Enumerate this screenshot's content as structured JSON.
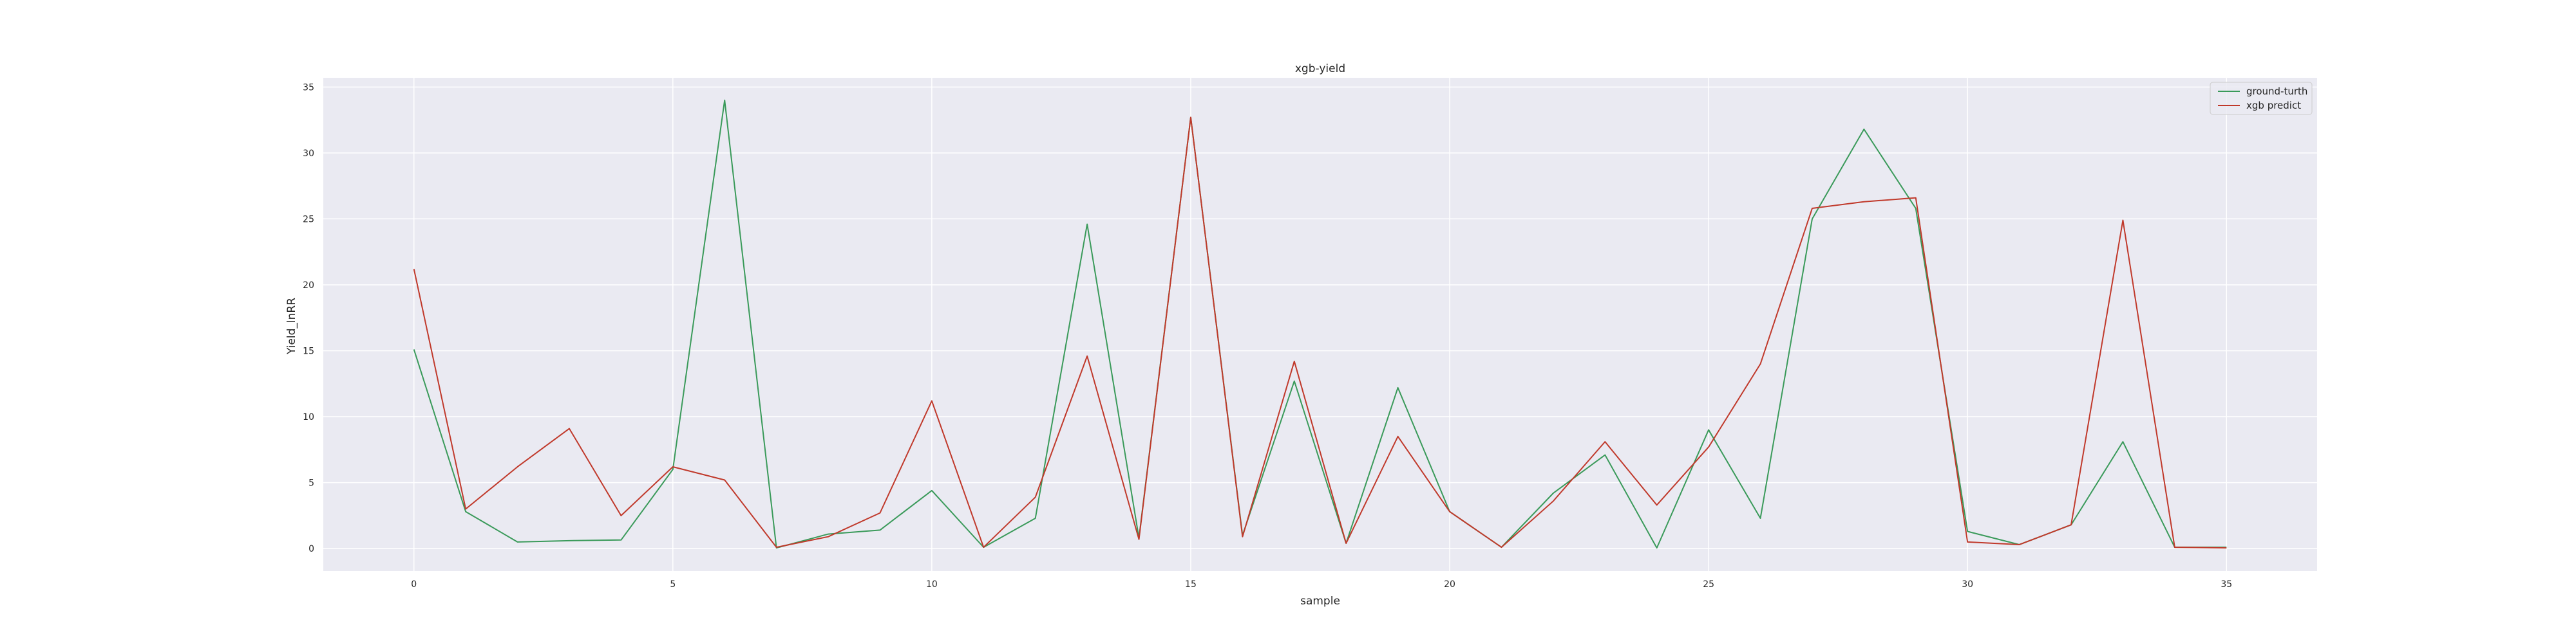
{
  "chart_data": {
    "type": "line",
    "title": "xgb-yield",
    "xlabel": "sample",
    "ylabel": "Yield_lnRR",
    "xlim": [
      -1.75,
      36.75
    ],
    "ylim": [
      -1.7,
      35.7
    ],
    "xticks": [
      0,
      5,
      10,
      15,
      20,
      25,
      30,
      35
    ],
    "yticks": [
      0,
      5,
      10,
      15,
      20,
      25,
      30,
      35
    ],
    "grid": true,
    "legend_position": "top-right",
    "background_color": "#eaeaf2",
    "grid_color": "#ffffff",
    "x": [
      0,
      1,
      2,
      3,
      4,
      5,
      6,
      7,
      8,
      9,
      10,
      11,
      12,
      13,
      14,
      15,
      16,
      17,
      18,
      19,
      20,
      21,
      22,
      23,
      24,
      25,
      26,
      27,
      28,
      29,
      30,
      31,
      32,
      33,
      34,
      35
    ],
    "series": [
      {
        "name": "ground-turth",
        "color": "#3a9a5a",
        "values": [
          15.1,
          2.8,
          0.5,
          0.6,
          0.65,
          6.0,
          34.0,
          0.05,
          1.1,
          1.4,
          4.4,
          0.1,
          2.3,
          24.6,
          0.8,
          32.7,
          1.0,
          12.7,
          0.4,
          12.2,
          2.8,
          0.1,
          4.2,
          7.1,
          0.05,
          9.0,
          2.3,
          25.0,
          31.8,
          25.8,
          1.3,
          0.3,
          1.8,
          8.1,
          0.1,
          0.1
        ]
      },
      {
        "name": "xgb predict",
        "color": "#c0392b",
        "values": [
          21.2,
          3.0,
          6.2,
          9.1,
          2.5,
          6.2,
          5.2,
          0.1,
          0.9,
          2.7,
          11.2,
          0.1,
          3.9,
          14.6,
          0.7,
          32.7,
          0.9,
          14.2,
          0.4,
          8.5,
          2.8,
          0.1,
          3.6,
          8.1,
          3.3,
          7.7,
          14.0,
          25.8,
          26.3,
          26.6,
          0.5,
          0.3,
          1.8,
          24.9,
          0.1,
          0.05
        ]
      }
    ]
  }
}
